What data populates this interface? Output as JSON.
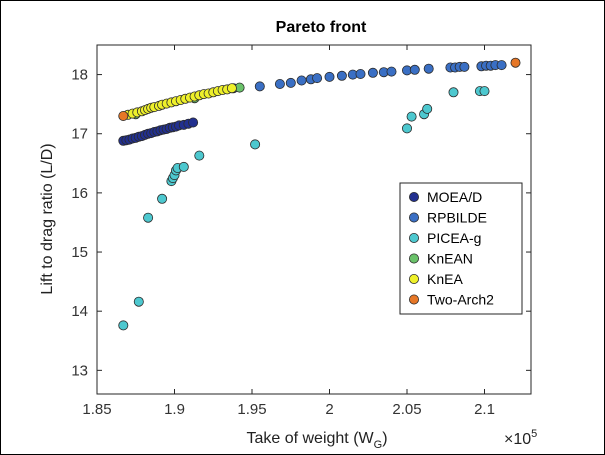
{
  "chart_data": {
    "type": "scatter",
    "title": "Pareto front",
    "xlabel": "Take of weight (W",
    "xlabel_sub": "G",
    "xlabel_suffix": ")",
    "ylabel": "Lift to drag ratio (L/D)",
    "x_multiplier_label": "×10",
    "x_multiplier_exp": "5",
    "xlim": [
      1.85,
      2.13
    ],
    "ylim": [
      12.6,
      18.5
    ],
    "xticks": [
      1.85,
      1.9,
      1.95,
      2,
      2.05,
      2.1
    ],
    "xtick_labels": [
      "1.85",
      "1.9",
      "1.95",
      "2",
      "2.05",
      "2.1"
    ],
    "yticks": [
      13,
      14,
      15,
      16,
      17,
      18
    ],
    "ytick_labels": [
      "13",
      "14",
      "15",
      "16",
      "17",
      "18"
    ],
    "grid": false,
    "legend_position": "right",
    "series": [
      {
        "name": "MOEA/D",
        "color": "#22308f",
        "points": [
          [
            1.867,
            16.88
          ],
          [
            1.869,
            16.89
          ],
          [
            1.871,
            16.9
          ],
          [
            1.873,
            16.92
          ],
          [
            1.875,
            16.93
          ],
          [
            1.877,
            16.95
          ],
          [
            1.879,
            16.96
          ],
          [
            1.881,
            16.98
          ],
          [
            1.883,
            17.0
          ],
          [
            1.885,
            17.01
          ],
          [
            1.887,
            17.03
          ],
          [
            1.889,
            17.04
          ],
          [
            1.891,
            17.06
          ],
          [
            1.893,
            17.07
          ],
          [
            1.895,
            17.08
          ],
          [
            1.897,
            17.1
          ],
          [
            1.899,
            17.11
          ],
          [
            1.901,
            17.12
          ],
          [
            1.903,
            17.14
          ],
          [
            1.906,
            17.15
          ],
          [
            1.909,
            17.17
          ],
          [
            1.912,
            17.19
          ]
        ]
      },
      {
        "name": "RPBILDE",
        "color": "#3a6fc4",
        "points": [
          [
            1.938,
            17.77
          ],
          [
            1.955,
            17.8
          ],
          [
            1.968,
            17.84
          ],
          [
            1.975,
            17.86
          ],
          [
            1.982,
            17.9
          ],
          [
            1.988,
            17.92
          ],
          [
            1.992,
            17.94
          ],
          [
            2.0,
            17.96
          ],
          [
            2.008,
            17.98
          ],
          [
            2.015,
            18.0
          ],
          [
            2.02,
            18.01
          ],
          [
            2.028,
            18.03
          ],
          [
            2.035,
            18.04
          ],
          [
            2.04,
            18.05
          ],
          [
            2.05,
            18.07
          ],
          [
            2.055,
            18.08
          ],
          [
            2.064,
            18.1
          ],
          [
            2.078,
            18.12
          ],
          [
            2.081,
            18.12
          ],
          [
            2.084,
            18.13
          ],
          [
            2.087,
            18.13
          ],
          [
            2.098,
            18.14
          ],
          [
            2.101,
            18.15
          ],
          [
            2.104,
            18.15
          ],
          [
            2.107,
            18.16
          ],
          [
            2.111,
            18.16
          ]
        ]
      },
      {
        "name": "PICEA-g",
        "color": "#4dc8cf",
        "points": [
          [
            1.867,
            13.76
          ],
          [
            1.877,
            14.16
          ],
          [
            1.883,
            15.58
          ],
          [
            1.892,
            15.9
          ],
          [
            1.898,
            16.2
          ],
          [
            1.899,
            16.25
          ],
          [
            1.9,
            16.3
          ],
          [
            1.901,
            16.38
          ],
          [
            1.902,
            16.42
          ],
          [
            1.906,
            16.44
          ],
          [
            1.916,
            16.63
          ],
          [
            1.952,
            16.82
          ],
          [
            2.05,
            17.09
          ],
          [
            2.053,
            17.29
          ],
          [
            2.061,
            17.33
          ],
          [
            2.063,
            17.42
          ],
          [
            2.08,
            17.7
          ],
          [
            2.097,
            17.72
          ],
          [
            2.1,
            17.72
          ]
        ]
      },
      {
        "name": "KnEAN",
        "color": "#6ac26a",
        "points": [
          [
            1.875,
            17.33
          ],
          [
            1.913,
            17.6
          ],
          [
            1.942,
            17.78
          ]
        ]
      },
      {
        "name": "KnEA",
        "color": "#eef02a",
        "points": [
          [
            1.87,
            17.32
          ],
          [
            1.873,
            17.34
          ],
          [
            1.876,
            17.36
          ],
          [
            1.879,
            17.38
          ],
          [
            1.881,
            17.4
          ],
          [
            1.883,
            17.42
          ],
          [
            1.885,
            17.44
          ],
          [
            1.887,
            17.45
          ],
          [
            1.89,
            17.47
          ],
          [
            1.892,
            17.49
          ],
          [
            1.895,
            17.51
          ],
          [
            1.898,
            17.53
          ],
          [
            1.901,
            17.55
          ],
          [
            1.904,
            17.57
          ],
          [
            1.907,
            17.59
          ],
          [
            1.91,
            17.61
          ],
          [
            1.913,
            17.63
          ],
          [
            1.916,
            17.65
          ],
          [
            1.919,
            17.67
          ],
          [
            1.922,
            17.68
          ],
          [
            1.925,
            17.7
          ],
          [
            1.928,
            17.72
          ],
          [
            1.931,
            17.74
          ],
          [
            1.934,
            17.75
          ],
          [
            1.937,
            17.77
          ]
        ]
      },
      {
        "name": "Two-Arch2",
        "color": "#e67727",
        "points": [
          [
            1.867,
            17.3
          ],
          [
            2.12,
            18.2
          ]
        ]
      }
    ]
  }
}
